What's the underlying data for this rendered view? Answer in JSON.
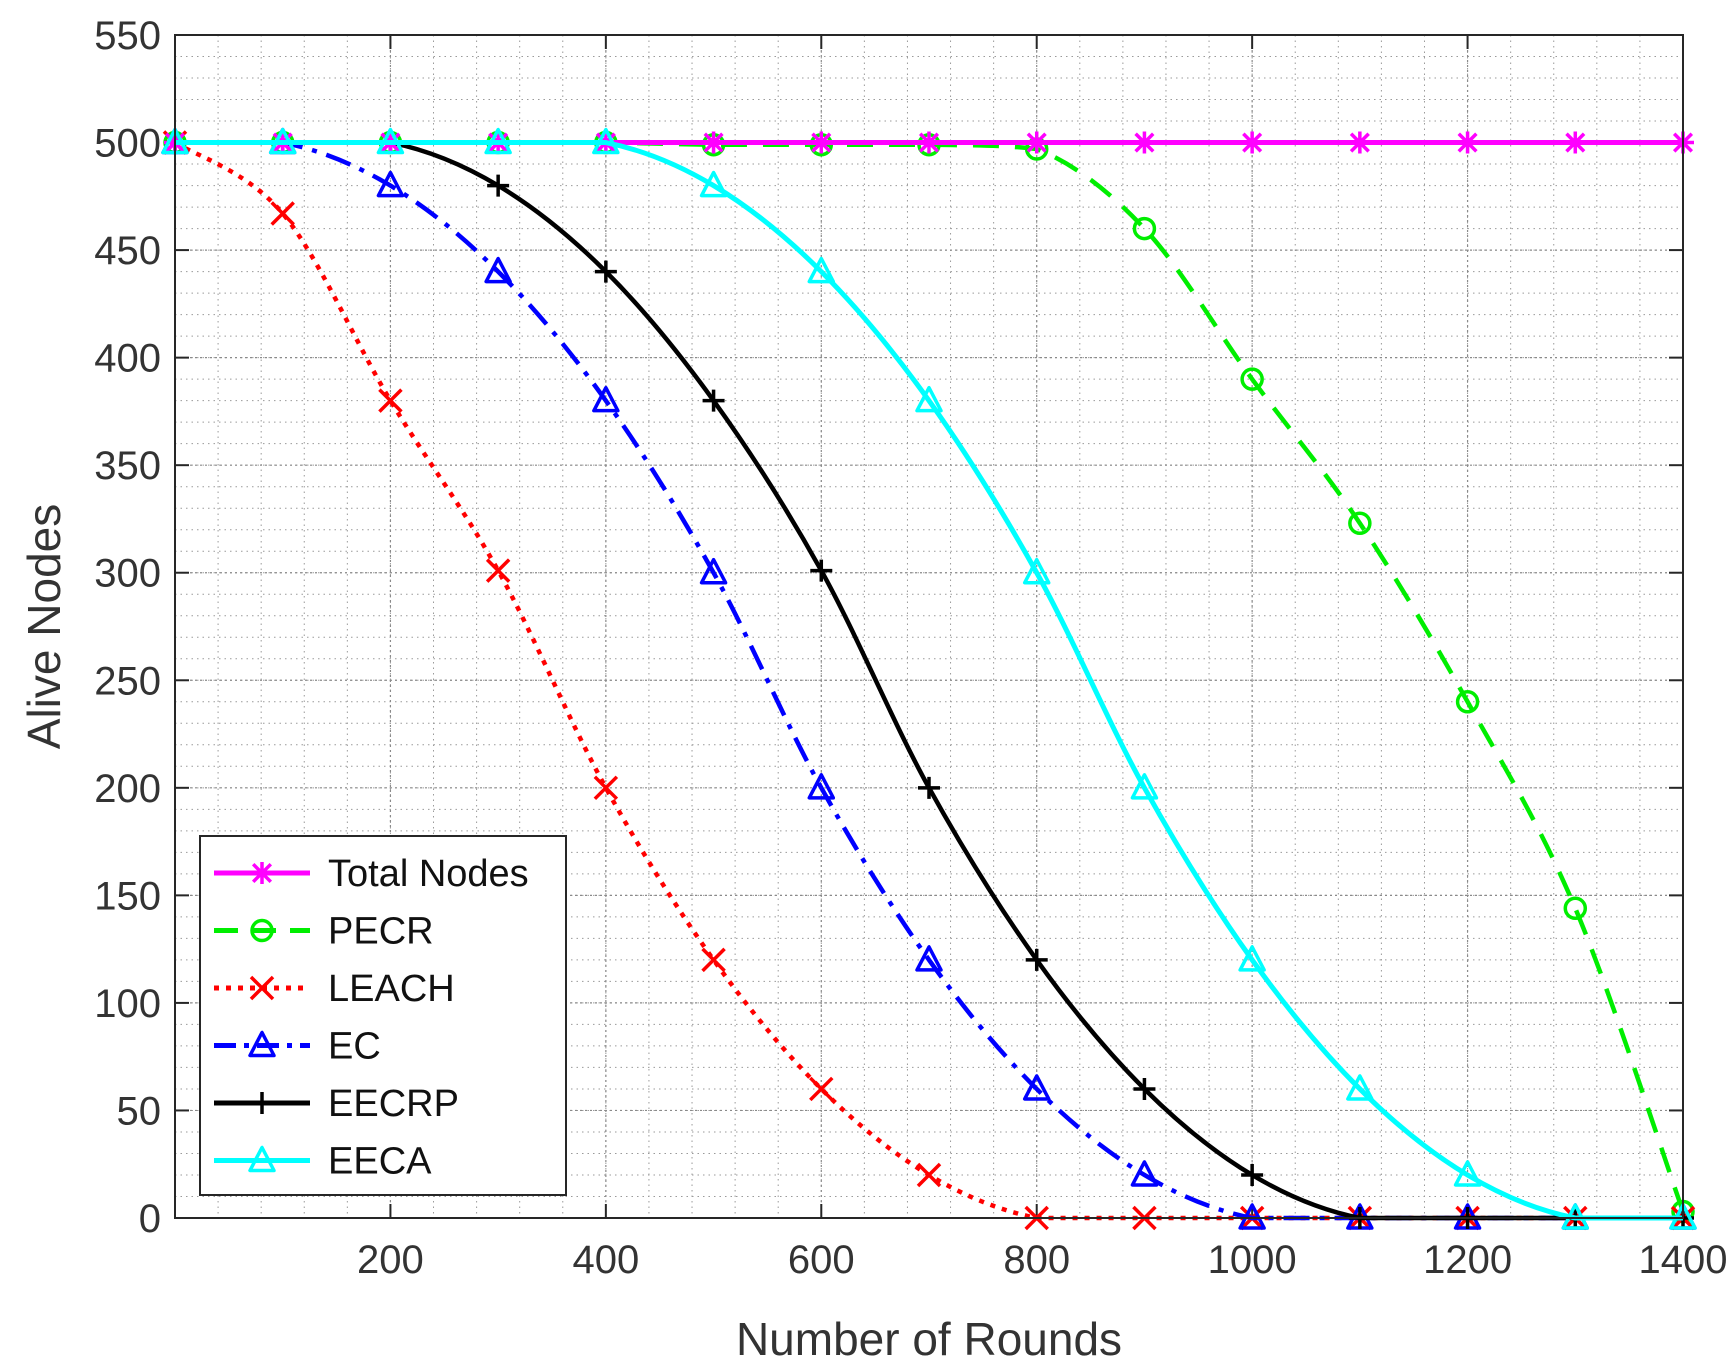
{
  "chart_data": {
    "type": "line",
    "title": "",
    "xlabel": "Number of Rounds",
    "ylabel": "Alive Nodes",
    "xlim": [
      0,
      1400
    ],
    "ylim": [
      0,
      550
    ],
    "xticks": [
      200,
      400,
      600,
      800,
      1000,
      1200,
      1400
    ],
    "yticks": [
      0,
      50,
      100,
      150,
      200,
      250,
      300,
      350,
      400,
      450,
      500,
      550
    ],
    "grid": "minor dotted",
    "legend_position": "bottom-left",
    "x": [
      0,
      100,
      200,
      300,
      400,
      500,
      600,
      700,
      800,
      900,
      1000,
      1100,
      1200,
      1300,
      1400
    ],
    "series": [
      {
        "name": "Total Nodes",
        "color": "#ff00ff",
        "dash": "solid",
        "marker": "asterisk",
        "values": [
          500,
          500,
          500,
          500,
          500,
          500,
          500,
          500,
          500,
          500,
          500,
          500,
          500,
          500,
          500
        ]
      },
      {
        "name": "PECR",
        "color": "#00ee00",
        "dash": "dashed",
        "marker": "circle",
        "values": [
          500,
          500,
          500,
          500,
          500,
          499,
          499,
          499,
          497,
          460,
          390,
          323,
          240,
          144,
          3
        ]
      },
      {
        "name": "LEACH",
        "color": "#ff0000",
        "dash": "dotted",
        "marker": "x",
        "values": [
          500,
          467,
          380,
          301,
          200,
          120,
          60,
          20,
          0,
          0,
          0,
          0,
          0,
          0,
          0
        ]
      },
      {
        "name": "EC",
        "color": "#0000ff",
        "dash": "dashdot",
        "marker": "triangle",
        "values": [
          500,
          500,
          480,
          440,
          380,
          300,
          200,
          120,
          60,
          20,
          0,
          0,
          0,
          0,
          0
        ]
      },
      {
        "name": "EECRP",
        "color": "#000000",
        "dash": "solid",
        "marker": "plus",
        "values": [
          500,
          500,
          500,
          480,
          440,
          380,
          301,
          200,
          120,
          60,
          20,
          0,
          0,
          0,
          0
        ]
      },
      {
        "name": "EECA",
        "color": "#00ffff",
        "dash": "solid",
        "marker": "triangle",
        "values": [
          500,
          500,
          500,
          500,
          500,
          480,
          440,
          380,
          300,
          200,
          120,
          60,
          20,
          0,
          0
        ]
      }
    ]
  }
}
